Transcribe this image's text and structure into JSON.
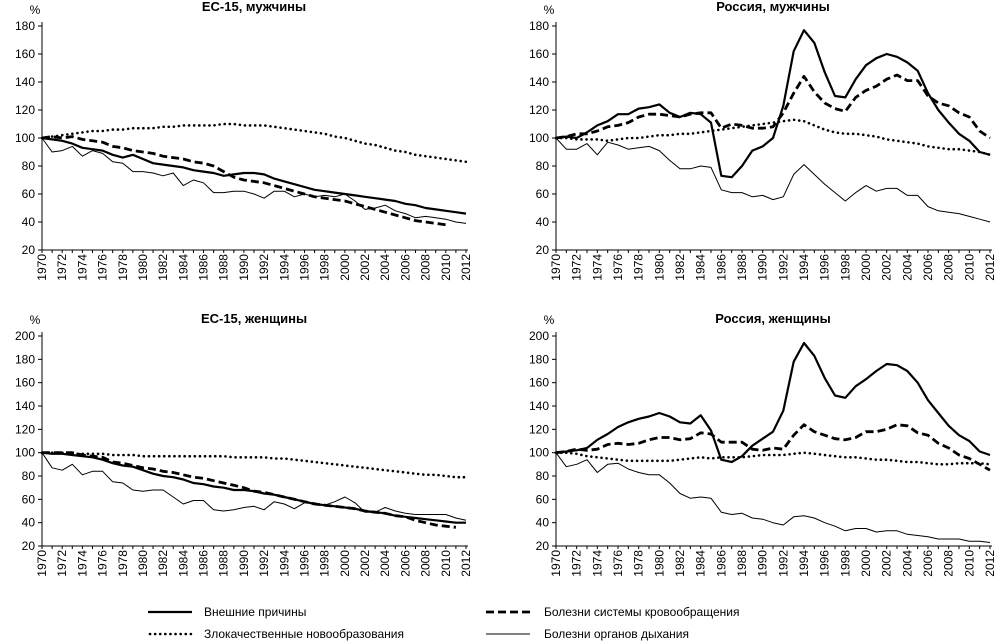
{
  "legend": [
    {
      "name": "Внешние причины",
      "style": "thick-solid"
    },
    {
      "name": "Болезни системы кровообращения",
      "style": "dashed"
    },
    {
      "name": "Злокачественные новообразования",
      "style": "dotted"
    },
    {
      "name": "Болезни органов дыхания",
      "style": "thin-solid"
    }
  ],
  "chart_data": [
    {
      "type": "line",
      "title": "ЕС-15, мужчины",
      "ylabel": "%",
      "ylim": [
        20,
        180
      ],
      "yticks": [
        20,
        40,
        60,
        80,
        100,
        120,
        140,
        160,
        180
      ],
      "x": [
        1970,
        1971,
        1972,
        1973,
        1974,
        1975,
        1976,
        1977,
        1978,
        1979,
        1980,
        1981,
        1982,
        1983,
        1984,
        1985,
        1986,
        1987,
        1988,
        1989,
        1990,
        1991,
        1992,
        1993,
        1994,
        1995,
        1996,
        1997,
        1998,
        1999,
        2000,
        2001,
        2002,
        2003,
        2004,
        2005,
        2006,
        2007,
        2008,
        2009,
        2010,
        2011,
        2012
      ],
      "xticks": [
        1970,
        1972,
        1974,
        1976,
        1978,
        1980,
        1982,
        1984,
        1986,
        1988,
        1990,
        1992,
        1994,
        1996,
        1998,
        2000,
        2002,
        2004,
        2006,
        2008,
        2010,
        2012
      ],
      "series": [
        {
          "name": "Внешние причины",
          "values": [
            100,
            99,
            98,
            96,
            93,
            92,
            91,
            88,
            86,
            88,
            85,
            82,
            81,
            80,
            79,
            77,
            76,
            75,
            73,
            74,
            75,
            75,
            74,
            71,
            69,
            67,
            65,
            63,
            62,
            61,
            60,
            59,
            58,
            57,
            56,
            55,
            53,
            52,
            50,
            49,
            48,
            47,
            46
          ]
        },
        {
          "name": "Болезни системы кровообращения",
          "values": [
            100,
            101,
            100,
            101,
            99,
            98,
            97,
            94,
            93,
            91,
            90,
            89,
            87,
            86,
            85,
            83,
            82,
            80,
            76,
            72,
            70,
            69,
            68,
            66,
            64,
            62,
            60,
            58,
            57,
            56,
            55,
            53,
            51,
            49,
            47,
            45,
            43,
            41,
            40,
            39,
            38,
            null,
            null
          ]
        },
        {
          "name": "Злокачественные новообразования",
          "values": [
            100,
            101,
            102,
            103,
            104,
            105,
            105,
            106,
            106,
            107,
            107,
            107,
            108,
            108,
            109,
            109,
            109,
            109,
            110,
            110,
            109,
            109,
            109,
            108,
            107,
            106,
            105,
            104,
            103,
            101,
            100,
            98,
            96,
            95,
            93,
            91,
            90,
            88,
            87,
            86,
            85,
            84,
            83
          ]
        },
        {
          "name": "Болезни органов дыхания",
          "values": [
            100,
            90,
            91,
            94,
            87,
            91,
            89,
            83,
            82,
            76,
            76,
            75,
            73,
            75,
            66,
            70,
            68,
            61,
            61,
            62,
            62,
            60,
            57,
            62,
            62,
            58,
            60,
            58,
            59,
            58,
            60,
            55,
            49,
            50,
            52,
            48,
            46,
            43,
            44,
            43,
            42,
            40,
            39
          ]
        }
      ]
    },
    {
      "type": "line",
      "title": "Россия, мужчины",
      "ylabel": "%",
      "ylim": [
        20,
        180
      ],
      "yticks": [
        20,
        40,
        60,
        80,
        100,
        120,
        140,
        160,
        180
      ],
      "x": [
        1970,
        1971,
        1972,
        1973,
        1974,
        1975,
        1976,
        1977,
        1978,
        1979,
        1980,
        1981,
        1982,
        1983,
        1984,
        1985,
        1986,
        1987,
        1988,
        1989,
        1990,
        1991,
        1992,
        1993,
        1994,
        1995,
        1996,
        1997,
        1998,
        1999,
        2000,
        2001,
        2002,
        2003,
        2004,
        2005,
        2006,
        2007,
        2008,
        2009,
        2010,
        2011,
        2012
      ],
      "xticks": [
        1970,
        1972,
        1974,
        1976,
        1978,
        1980,
        1982,
        1984,
        1986,
        1988,
        1990,
        1992,
        1994,
        1996,
        1998,
        2000,
        2002,
        2004,
        2006,
        2008,
        2010,
        2012
      ],
      "series": [
        {
          "name": "Внешние причины",
          "values": [
            100,
            101,
            100,
            104,
            109,
            112,
            117,
            117,
            121,
            122,
            124,
            118,
            115,
            118,
            117,
            111,
            73,
            72,
            80,
            91,
            94,
            100,
            123,
            162,
            177,
            168,
            147,
            130,
            129,
            142,
            152,
            157,
            160,
            158,
            154,
            148,
            132,
            120,
            111,
            103,
            98,
            90,
            88
          ]
        },
        {
          "name": "Болезни системы кровообращения",
          "values": [
            100,
            101,
            103,
            103,
            105,
            108,
            109,
            111,
            115,
            117,
            117,
            116,
            115,
            117,
            118,
            118,
            107,
            110,
            109,
            107,
            107,
            108,
            118,
            132,
            144,
            133,
            125,
            121,
            119,
            129,
            134,
            137,
            142,
            145,
            141,
            141,
            130,
            125,
            123,
            118,
            115,
            105,
            100
          ]
        },
        {
          "name": "Злокачественные новообразования",
          "values": [
            100,
            100,
            99,
            99,
            99,
            98,
            99,
            100,
            100,
            101,
            102,
            102,
            103,
            103,
            104,
            105,
            106,
            107,
            108,
            109,
            110,
            111,
            112,
            113,
            112,
            109,
            106,
            104,
            103,
            103,
            102,
            101,
            99,
            98,
            97,
            96,
            94,
            93,
            92,
            92,
            91,
            90,
            88
          ]
        },
        {
          "name": "Болезни органов дыхания",
          "values": [
            100,
            92,
            92,
            96,
            88,
            97,
            95,
            92,
            93,
            94,
            91,
            84,
            78,
            78,
            80,
            79,
            63,
            61,
            61,
            58,
            59,
            56,
            58,
            74,
            81,
            74,
            67,
            61,
            55,
            61,
            66,
            62,
            64,
            64,
            59,
            59,
            51,
            48,
            47,
            46,
            44,
            42,
            40
          ]
        }
      ]
    },
    {
      "type": "line",
      "title": "ЕС-15, женщины",
      "ylabel": "%",
      "ylim": [
        20,
        200
      ],
      "yticks": [
        20,
        40,
        60,
        80,
        100,
        120,
        140,
        160,
        180,
        200
      ],
      "x": [
        1970,
        1971,
        1972,
        1973,
        1974,
        1975,
        1976,
        1977,
        1978,
        1979,
        1980,
        1981,
        1982,
        1983,
        1984,
        1985,
        1986,
        1987,
        1988,
        1989,
        1990,
        1991,
        1992,
        1993,
        1994,
        1995,
        1996,
        1997,
        1998,
        1999,
        2000,
        2001,
        2002,
        2003,
        2004,
        2005,
        2006,
        2007,
        2008,
        2009,
        2010,
        2011,
        2012
      ],
      "xticks": [
        1970,
        1972,
        1974,
        1976,
        1978,
        1980,
        1982,
        1984,
        1986,
        1988,
        1990,
        1992,
        1994,
        1996,
        1998,
        2000,
        2002,
        2004,
        2006,
        2008,
        2010,
        2012
      ],
      "series": [
        {
          "name": "Внешние причины",
          "values": [
            100,
            99,
            99,
            98,
            97,
            96,
            94,
            91,
            89,
            88,
            85,
            82,
            80,
            79,
            77,
            74,
            73,
            71,
            70,
            68,
            68,
            67,
            65,
            64,
            62,
            60,
            58,
            56,
            55,
            54,
            53,
            52,
            50,
            49,
            48,
            46,
            45,
            44,
            43,
            42,
            41,
            40,
            40
          ]
        },
        {
          "name": "Болезни системы кровообращения",
          "values": [
            100,
            100,
            100,
            100,
            98,
            97,
            96,
            92,
            91,
            89,
            87,
            86,
            84,
            83,
            81,
            79,
            78,
            76,
            74,
            72,
            70,
            67,
            66,
            64,
            62,
            60,
            58,
            56,
            55,
            54,
            53,
            52,
            50,
            49,
            48,
            46,
            45,
            42,
            40,
            38,
            37,
            36,
            null
          ]
        },
        {
          "name": "Злокачественные новообразования",
          "values": [
            100,
            100,
            100,
            99,
            99,
            99,
            99,
            98,
            98,
            98,
            97,
            97,
            97,
            97,
            97,
            97,
            97,
            97,
            97,
            96,
            96,
            96,
            96,
            95,
            95,
            94,
            93,
            92,
            91,
            90,
            89,
            88,
            87,
            86,
            85,
            84,
            83,
            82,
            81,
            81,
            80,
            79,
            79
          ]
        },
        {
          "name": "Болезни органов дыхания",
          "values": [
            100,
            87,
            85,
            90,
            81,
            84,
            84,
            75,
            74,
            68,
            67,
            68,
            68,
            62,
            56,
            59,
            59,
            51,
            50,
            51,
            53,
            54,
            51,
            58,
            56,
            52,
            57,
            57,
            55,
            58,
            62,
            57,
            49,
            49,
            53,
            50,
            48,
            47,
            47,
            47,
            47,
            44,
            42
          ]
        }
      ]
    },
    {
      "type": "line",
      "title": "Россия, женщины",
      "ylabel": "%",
      "ylim": [
        20,
        200
      ],
      "yticks": [
        20,
        40,
        60,
        80,
        100,
        120,
        140,
        160,
        180,
        200
      ],
      "x": [
        1970,
        1971,
        1972,
        1973,
        1974,
        1975,
        1976,
        1977,
        1978,
        1979,
        1980,
        1981,
        1982,
        1983,
        1984,
        1985,
        1986,
        1987,
        1988,
        1989,
        1990,
        1991,
        1992,
        1993,
        1994,
        1995,
        1996,
        1997,
        1998,
        1999,
        2000,
        2001,
        2002,
        2003,
        2004,
        2005,
        2006,
        2007,
        2008,
        2009,
        2010,
        2011,
        2012
      ],
      "xticks": [
        1970,
        1972,
        1974,
        1976,
        1978,
        1980,
        1982,
        1984,
        1986,
        1988,
        1990,
        1992,
        1994,
        1996,
        1998,
        2000,
        2002,
        2004,
        2006,
        2008,
        2010,
        2012
      ],
      "series": [
        {
          "name": "Внешние причины",
          "values": [
            100,
            101,
            102,
            104,
            111,
            116,
            122,
            126,
            129,
            131,
            134,
            131,
            126,
            125,
            132,
            119,
            94,
            92,
            97,
            106,
            112,
            118,
            136,
            178,
            194,
            183,
            164,
            149,
            147,
            157,
            163,
            170,
            176,
            175,
            170,
            160,
            145,
            134,
            123,
            115,
            110,
            101,
            98
          ]
        },
        {
          "name": "Болезни системы кровообращения",
          "values": [
            100,
            101,
            103,
            102,
            103,
            107,
            108,
            107,
            108,
            111,
            113,
            113,
            111,
            112,
            117,
            116,
            109,
            109,
            109,
            103,
            102,
            104,
            103,
            115,
            124,
            118,
            115,
            112,
            111,
            113,
            118,
            118,
            120,
            124,
            123,
            117,
            115,
            108,
            104,
            98,
            95,
            90,
            85
          ]
        },
        {
          "name": "Злокачественные новообразования",
          "values": [
            100,
            100,
            99,
            97,
            96,
            95,
            94,
            93,
            93,
            93,
            93,
            93,
            94,
            95,
            96,
            95,
            96,
            96,
            96,
            97,
            98,
            98,
            98,
            99,
            100,
            99,
            98,
            97,
            96,
            96,
            95,
            94,
            94,
            93,
            92,
            92,
            91,
            90,
            90,
            91,
            91,
            91,
            90
          ]
        },
        {
          "name": "Болезни органов дыхания",
          "values": [
            100,
            88,
            90,
            94,
            83,
            90,
            91,
            86,
            83,
            81,
            81,
            74,
            65,
            61,
            62,
            61,
            49,
            47,
            48,
            44,
            43,
            40,
            38,
            45,
            46,
            44,
            40,
            37,
            33,
            35,
            35,
            32,
            33,
            33,
            30,
            29,
            28,
            26,
            26,
            26,
            24,
            24,
            23
          ]
        }
      ]
    }
  ]
}
